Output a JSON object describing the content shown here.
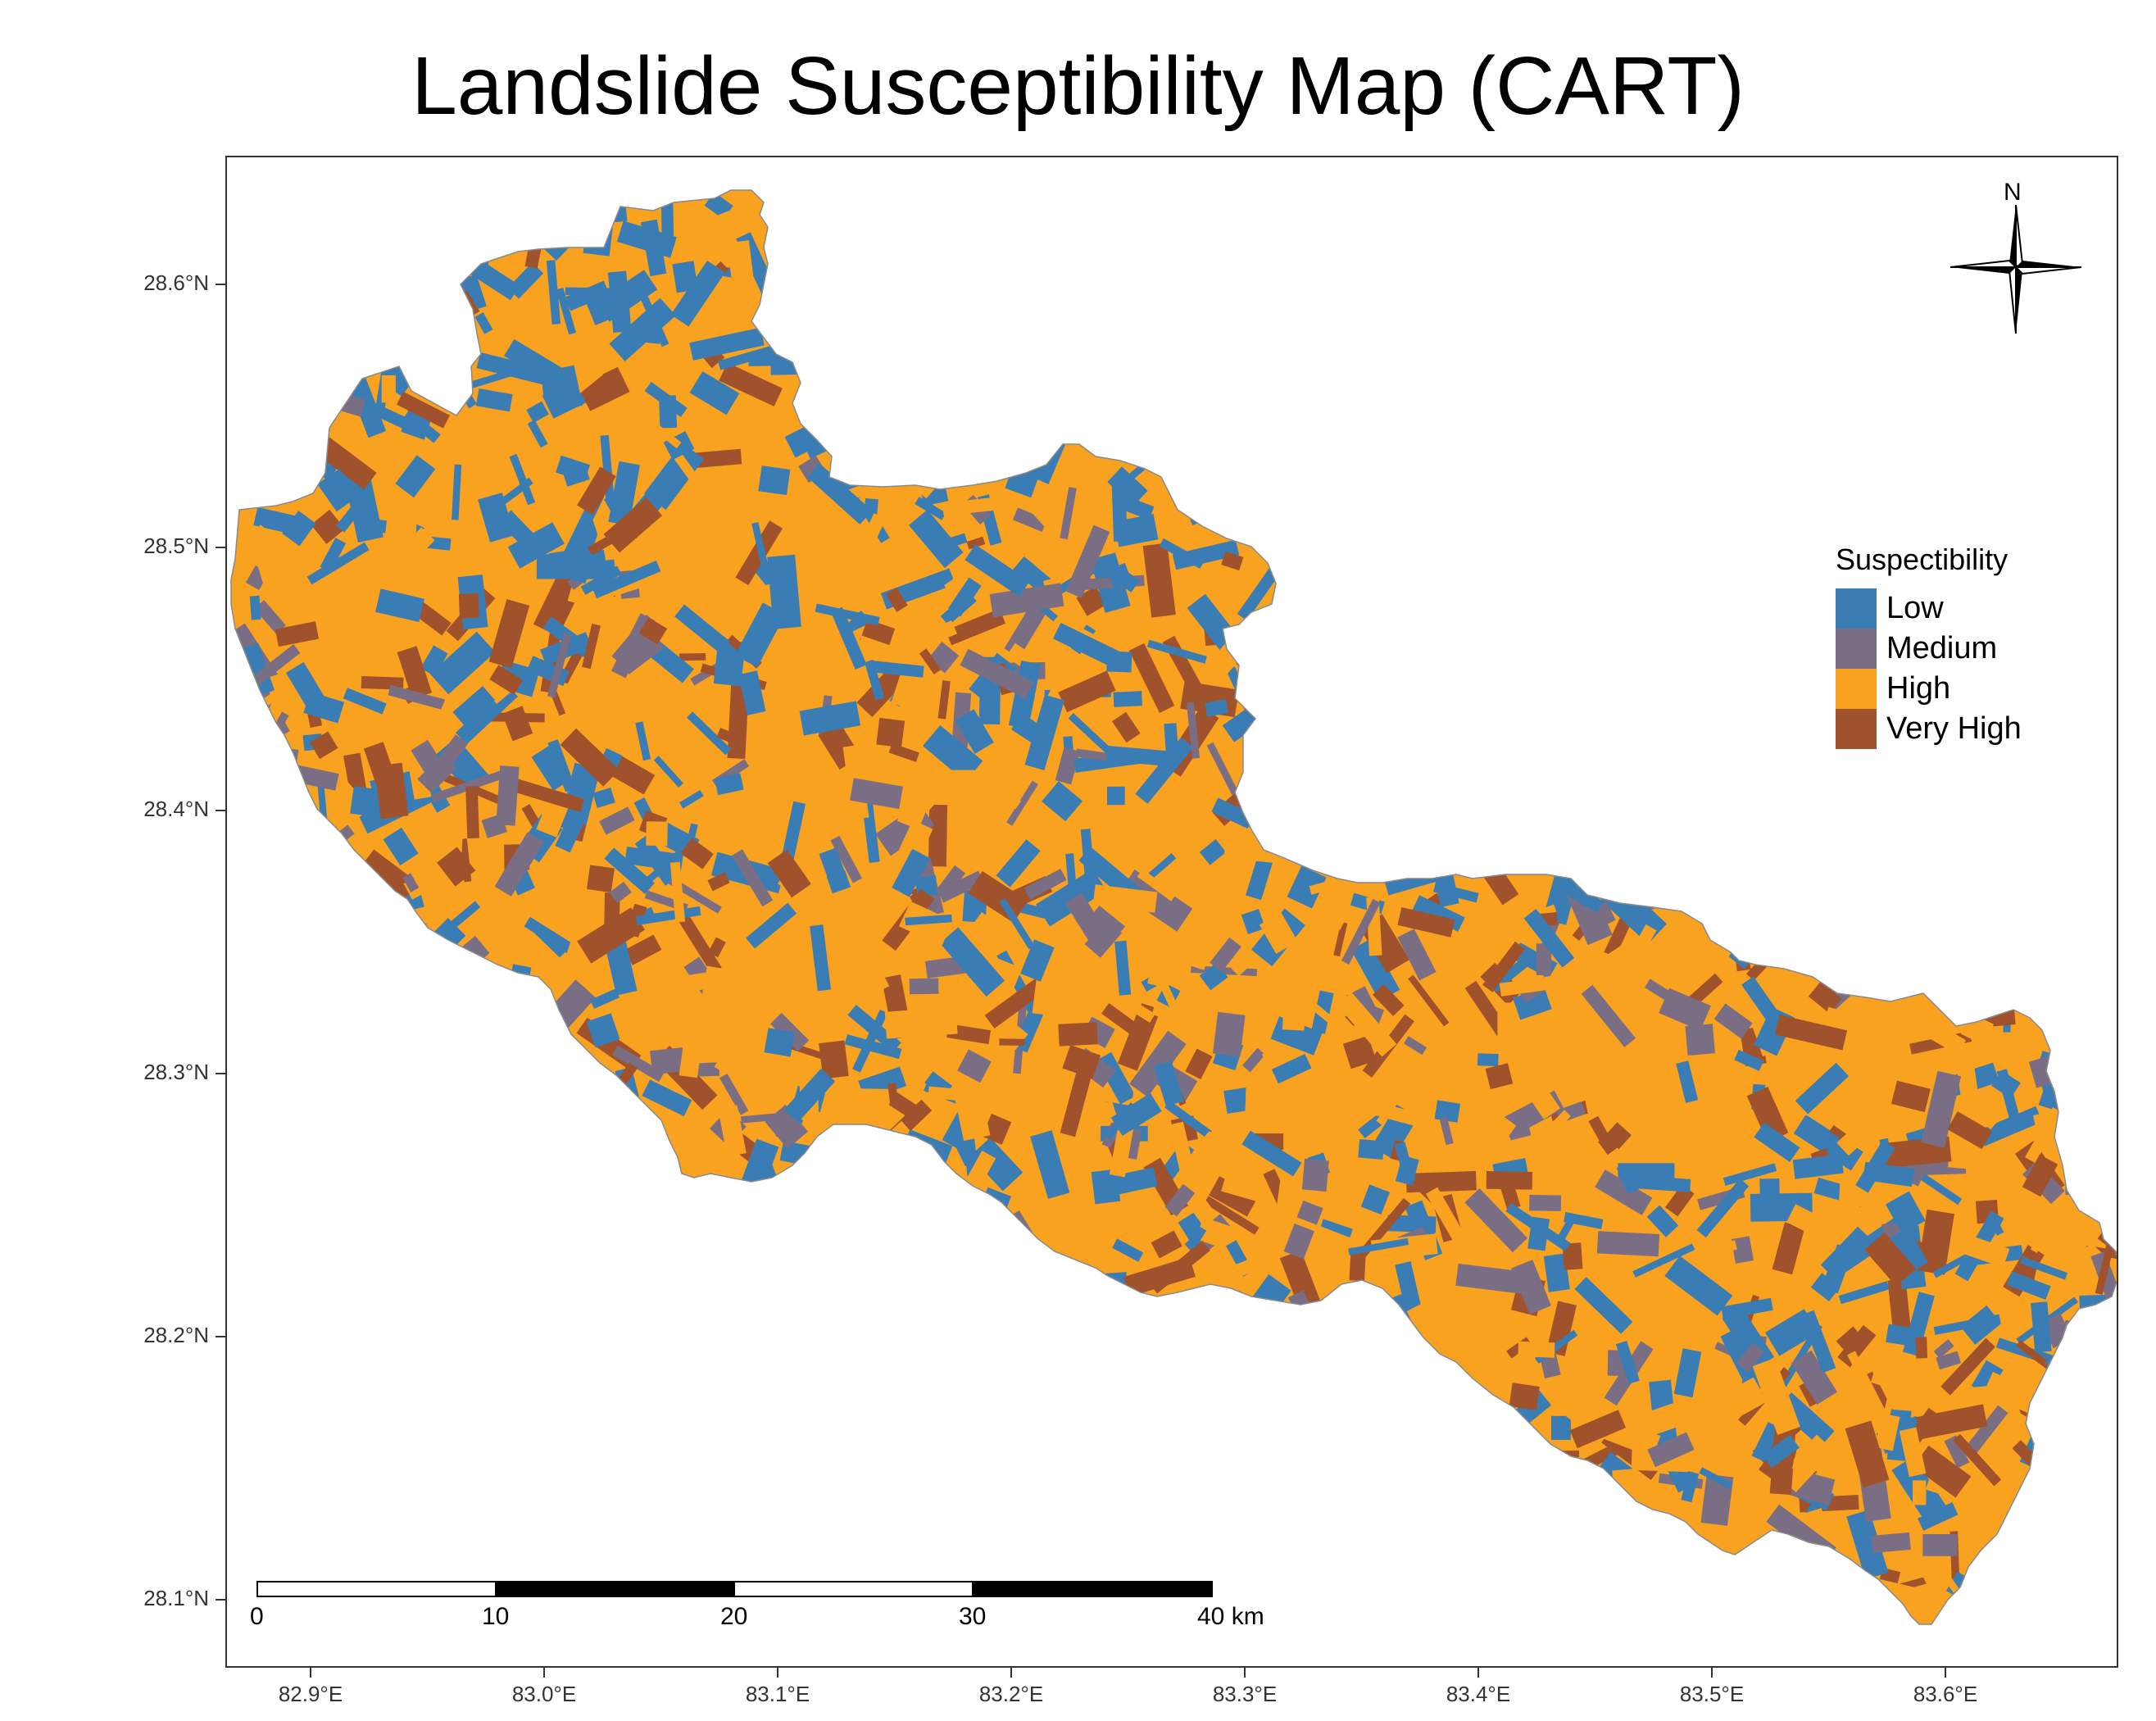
{
  "title": "Landslide Susceptibility Map (CART)",
  "map": {
    "y_axis": {
      "ticks": [
        "28.6°N",
        "28.5°N",
        "28.4°N",
        "28.3°N",
        "28.2°N",
        "28.1°N"
      ]
    },
    "x_axis": {
      "ticks": [
        "82.9°E",
        "83.0°E",
        "83.1°E",
        "83.2°E",
        "83.3°E",
        "83.4°E",
        "83.5°E",
        "83.6°E"
      ]
    },
    "north_arrow": {
      "label": "N",
      "icon": "north-arrow-icon"
    },
    "scale_bar": {
      "labels": [
        "0",
        "10",
        "20",
        "30",
        "40 km"
      ]
    }
  },
  "legend": {
    "title": "Suspectibility",
    "items": [
      {
        "label": "Low",
        "color": "#3A7DB5"
      },
      {
        "label": "Medium",
        "color": "#7A6E85"
      },
      {
        "label": "High",
        "color": "#F8A21F"
      },
      {
        "label": "Very High",
        "color": "#A0522D"
      }
    ]
  }
}
